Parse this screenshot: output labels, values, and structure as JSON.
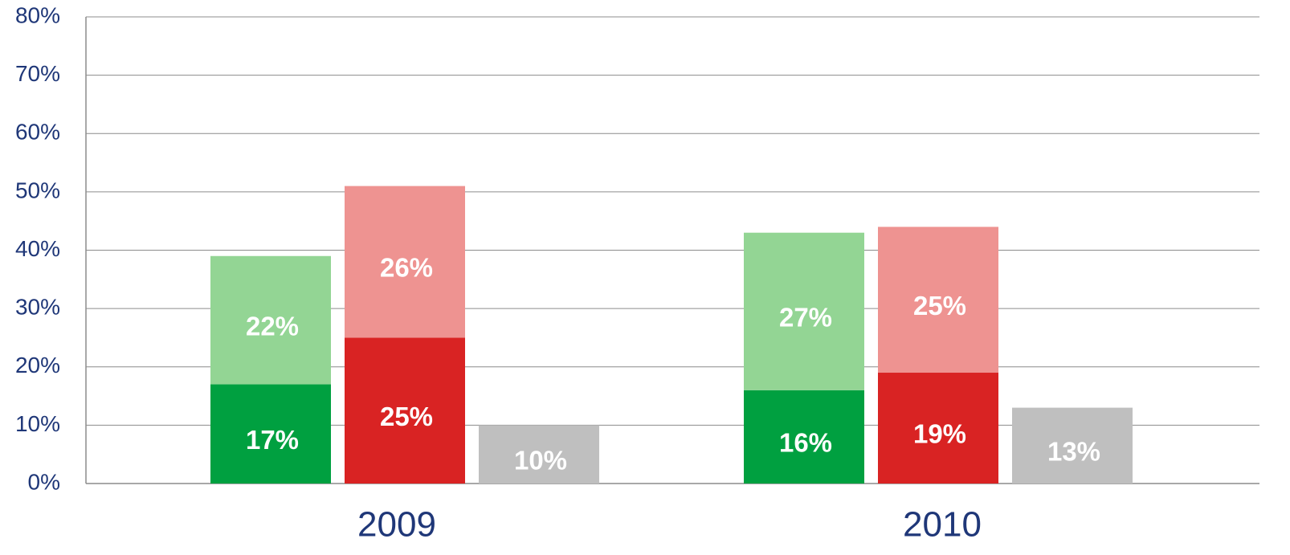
{
  "chart_data": {
    "type": "stacked_bar",
    "categories": [
      "2009",
      "2010"
    ],
    "series": [
      {
        "color": "#00a040",
        "stack": 0,
        "values": [
          17,
          16
        ],
        "value_labels": [
          "17%",
          "16%"
        ]
      },
      {
        "color": "#93d594",
        "stack": 0,
        "values": [
          22,
          27
        ],
        "value_labels": [
          "22%",
          "27%"
        ]
      },
      {
        "color": "#d92323",
        "stack": 1,
        "values": [
          25,
          19
        ],
        "value_labels": [
          "25%",
          "19%"
        ]
      },
      {
        "color": "#ee9391",
        "stack": 1,
        "values": [
          26,
          25
        ],
        "value_labels": [
          "26%",
          "25%"
        ]
      },
      {
        "color": "#bfbfbf",
        "stack": 2,
        "values": [
          10,
          13
        ],
        "value_labels": [
          "10%",
          "13%"
        ]
      }
    ],
    "ylim": [
      0,
      80
    ],
    "yticks": [
      {
        "value": 0,
        "label": "0%"
      },
      {
        "value": 10,
        "label": "10%"
      },
      {
        "value": 20,
        "label": "20%"
      },
      {
        "value": 30,
        "label": "30%"
      },
      {
        "value": 40,
        "label": "40%"
      },
      {
        "value": 50,
        "label": "50%"
      },
      {
        "value": 60,
        "label": "60%"
      },
      {
        "value": 70,
        "label": "70%"
      },
      {
        "value": 80,
        "label": "80%"
      }
    ],
    "grid": true
  }
}
